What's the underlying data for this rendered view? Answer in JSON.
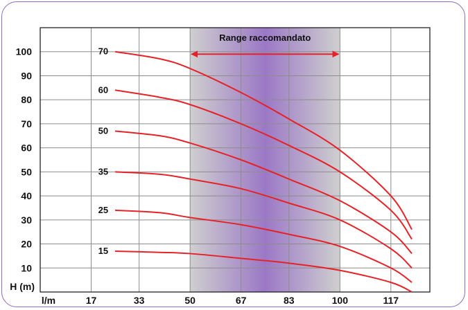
{
  "chart_data": {
    "type": "line",
    "title": "",
    "xlabel": "l/m",
    "ylabel": "H (m)",
    "x_ticks": [
      17,
      33,
      50,
      67,
      83,
      100,
      117
    ],
    "y_ticks": [
      10,
      20,
      30,
      40,
      50,
      60,
      70,
      80,
      90,
      100
    ],
    "xlim": [
      0,
      130
    ],
    "ylim": [
      0,
      110
    ],
    "grid": true,
    "recommended_range": {
      "label": "Range raccomandato",
      "x_from": 50,
      "x_to": 100
    },
    "series": [
      {
        "name": "70",
        "x": [
          25,
          40,
          50,
          67,
          83,
          100,
          117,
          124
        ],
        "y": [
          100,
          97,
          93,
          83,
          72,
          59,
          40,
          26
        ]
      },
      {
        "name": "60",
        "x": [
          25,
          40,
          50,
          67,
          83,
          100,
          117,
          124
        ],
        "y": [
          84,
          81,
          78,
          70,
          61,
          50,
          34,
          22
        ]
      },
      {
        "name": "50",
        "x": [
          25,
          40,
          50,
          67,
          83,
          100,
          117,
          124
        ],
        "y": [
          67,
          65,
          62,
          55,
          47,
          38,
          25,
          16
        ]
      },
      {
        "name": "35",
        "x": [
          25,
          40,
          50,
          67,
          83,
          100,
          117,
          124
        ],
        "y": [
          50,
          49,
          47,
          43,
          37,
          30,
          18,
          10
        ]
      },
      {
        "name": "25",
        "x": [
          25,
          40,
          50,
          67,
          83,
          100,
          117,
          124
        ],
        "y": [
          34,
          33,
          31,
          28,
          24,
          19,
          10,
          4
        ]
      },
      {
        "name": "15",
        "x": [
          25,
          40,
          50,
          67,
          83,
          100,
          117,
          124
        ],
        "y": [
          17,
          16.5,
          16,
          14,
          12,
          9,
          4,
          0
        ]
      }
    ]
  },
  "colors": {
    "curve": "#e52228",
    "arrow": "#e52228",
    "band_edge": "#cfcfcf",
    "band_center": "#9b78c6",
    "grid": "#8c8c8c",
    "frame": "#8a6cb8"
  }
}
